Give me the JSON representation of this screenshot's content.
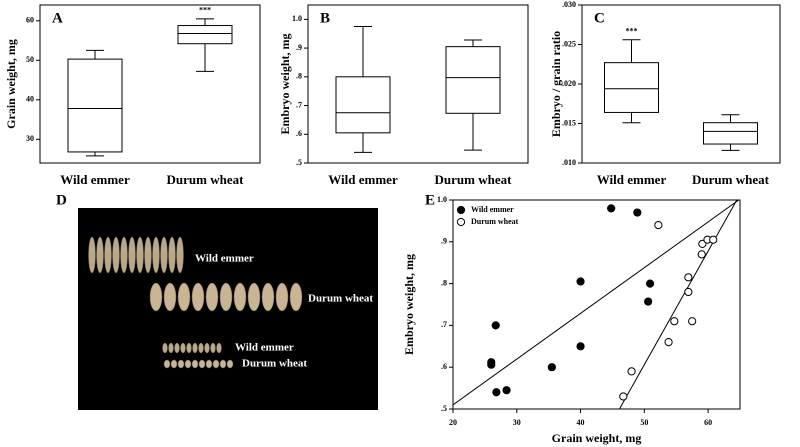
{
  "chart_data": [
    {
      "type": "box",
      "panel_label": "A",
      "y_label": "Grain weight, mg",
      "categories": [
        "Wild emmer",
        "Durum wheat"
      ],
      "boxes": [
        {
          "low": 25.8,
          "q1": 26.8,
          "median": 37.8,
          "q3": 50.3,
          "high": 52.5
        },
        {
          "low": 47.2,
          "q1": 54.2,
          "median": 56.8,
          "q3": 58.8,
          "high": 60.5
        }
      ],
      "annotations": [
        {
          "text": "***",
          "x": "Durum wheat"
        }
      ],
      "ylim": [
        24,
        64
      ],
      "yticks": [
        30,
        40,
        50,
        60
      ]
    },
    {
      "type": "box",
      "panel_label": "B",
      "y_label": "Embryo weight, mg",
      "categories": [
        "Wild emmer",
        "Durum wheat"
      ],
      "boxes": [
        {
          "low": 0.537,
          "q1": 0.605,
          "median": 0.675,
          "q3": 0.8,
          "high": 0.975
        },
        {
          "low": 0.545,
          "q1": 0.673,
          "median": 0.797,
          "q3": 0.905,
          "high": 0.928
        }
      ],
      "ylim": [
        0.5,
        1.05
      ],
      "yticks": [
        {
          "value": 0.5,
          "label": ".5"
        },
        {
          "value": 0.6,
          "label": ".6"
        },
        {
          "value": 0.7,
          "label": ".7"
        },
        {
          "value": 0.8,
          "label": ".8"
        },
        {
          "value": 0.9,
          "label": ".9"
        },
        {
          "value": 1.0,
          "label": "1.0"
        }
      ]
    },
    {
      "type": "box",
      "panel_label": "C",
      "y_label": "Embryo / grain ratio",
      "categories": [
        "Wild emmer",
        "Durum wheat"
      ],
      "boxes": [
        {
          "low": 0.0151,
          "q1": 0.0164,
          "median": 0.0194,
          "q3": 0.0227,
          "high": 0.0256
        },
        {
          "low": 0.0116,
          "q1": 0.0124,
          "median": 0.014,
          "q3": 0.0151,
          "high": 0.0161
        }
      ],
      "annotations": [
        {
          "text": "***",
          "x": "Wild emmer"
        }
      ],
      "ylim": [
        0.01,
        0.03
      ],
      "yticks": [
        {
          "value": 0.01,
          "label": ".010"
        },
        {
          "value": 0.015,
          "label": ".015"
        },
        {
          "value": 0.02,
          "label": ".020"
        },
        {
          "value": 0.025,
          "label": ".025"
        },
        {
          "value": 0.03,
          "label": ".030"
        }
      ]
    },
    {
      "type": "photo",
      "panel_label": "D",
      "labels": [
        "Wild emmer",
        "Durum wheat",
        "Wild emmer",
        "Durum wheat"
      ]
    },
    {
      "type": "scatter",
      "panel_label": "E",
      "x_label": "Grain weight, mg",
      "y_label": "Embryo weight, mg",
      "legend": "top-left",
      "series": [
        {
          "name": "Wild emmer",
          "color": "#000000",
          "marker": "filled",
          "x": [
            26.0,
            26.0,
            26.7,
            26.8,
            28.4,
            35.5,
            40.0,
            40.0,
            44.8,
            48.9,
            50.9,
            50.6
          ],
          "y": [
            0.606,
            0.612,
            0.7,
            0.54,
            0.545,
            0.6,
            0.805,
            0.65,
            0.98,
            0.97,
            0.8,
            0.757
          ],
          "trend": {
            "x": [
              20,
              64.8
            ],
            "y": [
              0.51,
              1.0
            ]
          }
        },
        {
          "name": "Durum wheat",
          "color": "#000000",
          "marker": "open",
          "x": [
            46.7,
            48.0,
            53.8,
            54.7,
            57.5,
            56.9,
            56.9,
            59.0,
            59.1,
            59.9,
            60.8,
            52.2
          ],
          "y": [
            0.53,
            0.59,
            0.66,
            0.71,
            0.71,
            0.78,
            0.815,
            0.87,
            0.895,
            0.905,
            0.905,
            0.94
          ],
          "trend": {
            "x": [
              46.1,
              64.5
            ],
            "y": [
              0.5,
              1.0
            ]
          }
        }
      ],
      "xlim": [
        20,
        65
      ],
      "xticks": [
        20,
        30,
        40,
        50,
        60
      ],
      "ylim": [
        0.5,
        1.0
      ],
      "yticks": [
        {
          "value": 0.5,
          "label": ".5"
        },
        {
          "value": 0.6,
          "label": ".6"
        },
        {
          "value": 0.7,
          "label": ".7"
        },
        {
          "value": 0.8,
          "label": ".8"
        },
        {
          "value": 0.9,
          "label": ".9"
        },
        {
          "value": 1.0,
          "label": "1.0"
        }
      ]
    }
  ]
}
